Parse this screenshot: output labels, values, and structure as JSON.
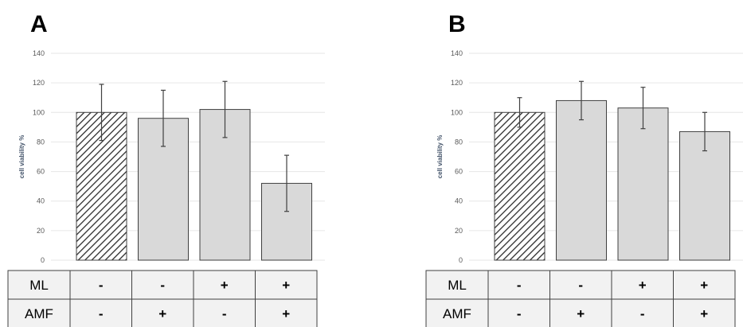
{
  "chart_data": [
    {
      "type": "bar",
      "panel_label": "A",
      "ylabel": "cell viability %",
      "ylim": [
        0,
        140
      ],
      "yticks": [
        0,
        20,
        40,
        60,
        80,
        100,
        120,
        140
      ],
      "grid": true,
      "values": [
        100,
        96,
        102,
        52
      ],
      "errors": [
        19,
        19,
        19,
        19
      ],
      "bar_styles": [
        "hatched",
        "solid",
        "solid",
        "solid"
      ],
      "table": {
        "rows": [
          {
            "label": "ML",
            "cells": [
              "-",
              "-",
              "+",
              "+"
            ]
          },
          {
            "label": "AMF",
            "cells": [
              "-",
              "+",
              "-",
              "+"
            ]
          }
        ]
      }
    },
    {
      "type": "bar",
      "panel_label": "B",
      "ylabel": "cell viability %",
      "ylim": [
        0,
        140
      ],
      "yticks": [
        0,
        20,
        40,
        60,
        80,
        100,
        120,
        140
      ],
      "grid": true,
      "values": [
        100,
        108,
        103,
        87
      ],
      "errors": [
        10,
        13,
        14,
        13
      ],
      "bar_styles": [
        "hatched",
        "solid",
        "solid",
        "solid"
      ],
      "table": {
        "rows": [
          {
            "label": "ML",
            "cells": [
              "-",
              "-",
              "+",
              "+"
            ]
          },
          {
            "label": "AMF",
            "cells": [
              "-",
              "+",
              "-",
              "+"
            ]
          }
        ]
      }
    }
  ],
  "colors": {
    "bar_fill": "#d9d9d9",
    "bar_stroke": "#404040",
    "hatch": "#2b2b2b",
    "grid": "#e6e6e6",
    "error_bar": "#404040",
    "table_label_bg": "#f2f2f2",
    "table_border": "#404040"
  }
}
